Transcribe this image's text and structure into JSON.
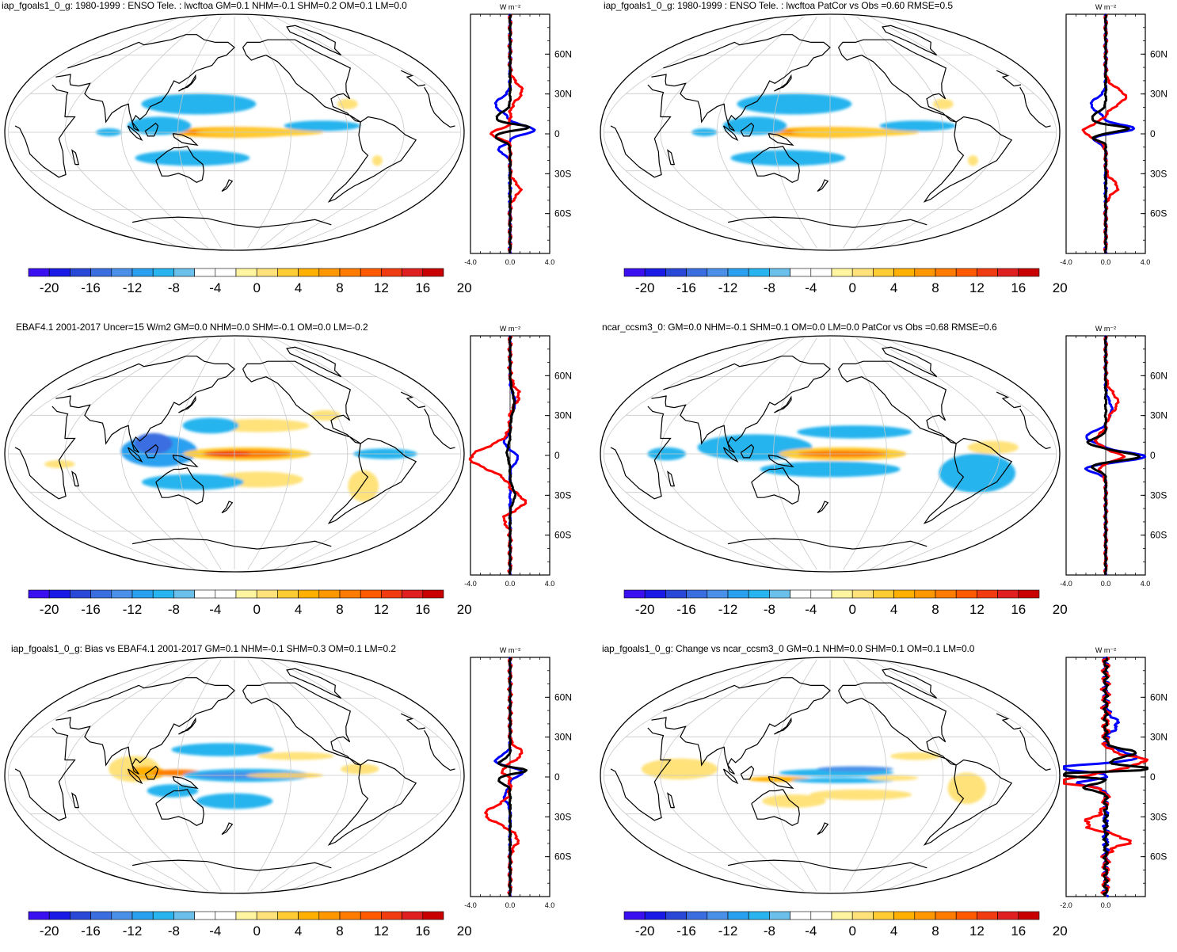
{
  "panels": [
    {
      "title": "iap_fgoals1_0_g: 1980-1999 : ENSO Tele. : lwcftoa GM=0.1 NHM=-0.1 SHM=0.2 OM=0.1 LM=0.0",
      "zonal_xticks": [
        "-4.0",
        "0.0",
        "4.0"
      ],
      "zonal_xrange": [
        -4,
        4
      ]
    },
    {
      "title": "iap_fgoals1_0_g: 1980-1999 : ENSO Tele. : lwcftoa PatCor vs Obs =0.60 RMSE=0.5",
      "zonal_xticks": [
        "-4.0",
        "0.0",
        "4.0"
      ],
      "zonal_xrange": [
        -4,
        4
      ]
    },
    {
      "title": "EBAF4.1 2001-2017 Uncer=15 W/m2 GM=0.0 NHM=0.0 SHM=-0.1 OM=0.0 LM=-0.2",
      "zonal_xticks": [
        "-4.0",
        "0.0",
        "4.0"
      ],
      "zonal_xrange": [
        -4,
        4
      ]
    },
    {
      "title": "ncar_ccsm3_0: GM=0.0 NHM=-0.1 SHM=0.1 OM=0.0 LM=0.0 PatCor vs Obs =0.68 RMSE=0.6",
      "zonal_xticks": [
        "-4.0",
        "0.0",
        "4.0"
      ],
      "zonal_xrange": [
        -4,
        4
      ]
    },
    {
      "title": "iap_fgoals1_0_g: Bias vs EBAF4.1 2001-2017 GM=0.1 NHM=-0.1 SHM=0.3 OM=0.1 LM=0.2",
      "zonal_xticks": [
        "-4.0",
        "0.0",
        "4.0"
      ],
      "zonal_xrange": [
        -4,
        4
      ]
    },
    {
      "title": "iap_fgoals1_0_g: Change vs ncar_ccsm3_0 GM=0.1 NHM=0.0 SHM=0.1 OM=0.1 LM=0.0",
      "zonal_xticks": [
        "-2.0",
        "0.0",
        ""
      ],
      "zonal_xrange": [
        -2,
        2
      ]
    }
  ],
  "colorbar": {
    "labels": [
      "-20",
      "-16",
      "-12",
      "-8",
      "-4",
      "0",
      "4",
      "8",
      "12",
      "16",
      "20"
    ],
    "colors": [
      "#3a10f0",
      "#1a1ae6",
      "#2a48d8",
      "#3a6ee0",
      "#4a90e8",
      "#2aa0f0",
      "#28b4ee",
      "#6ac0ea",
      "#ffffff",
      "#ffffff",
      "#fff5a0",
      "#ffe27a",
      "#ffcc33",
      "#ffb000",
      "#ff9800",
      "#ff7c00",
      "#ff5a00",
      "#f03c10",
      "#e02020",
      "#c80000"
    ]
  },
  "zonal": {
    "unit": "W m⁻²",
    "lat_labels": [
      "60N",
      "30N",
      "0",
      "30S",
      "60S"
    ],
    "series_colors": [
      "#0000ff",
      "#ff0000",
      "#000000"
    ]
  }
}
